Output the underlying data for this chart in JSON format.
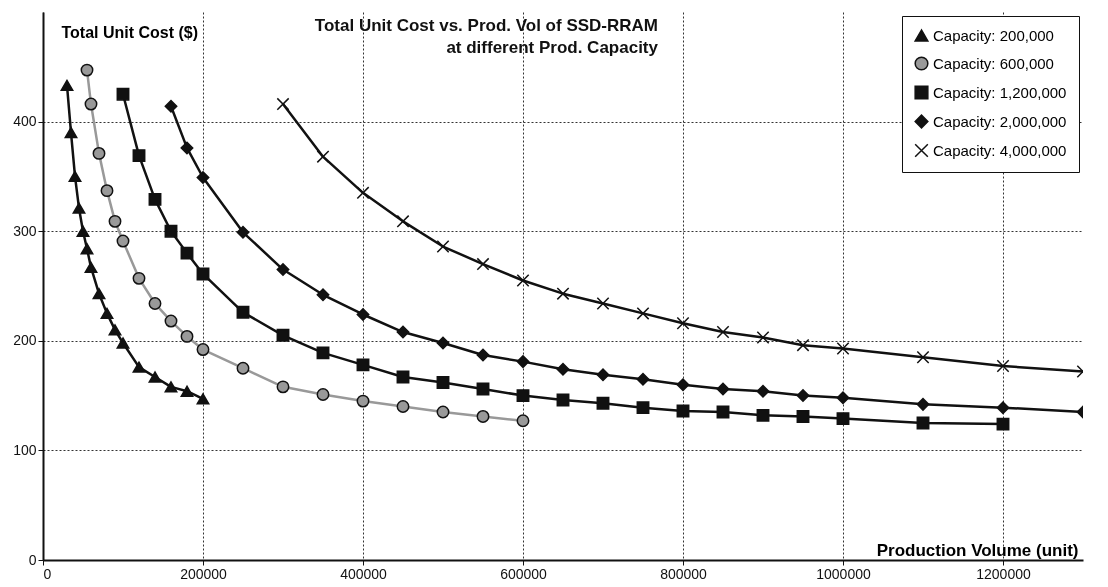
{
  "chart_data": {
    "type": "line",
    "title": "Total Unit Cost vs. Prod. Vol of SSD-RRAM\nat different Prod. Capacity",
    "xlabel": "Production Volume (unit)",
    "ylabel": "Total Unit Cost ($)",
    "xlim": [
      0,
      1300000
    ],
    "ylim": [
      0,
      500
    ],
    "xticks": [
      0,
      200000,
      400000,
      600000,
      800000,
      1000000,
      1200000
    ],
    "yticks": [
      0,
      100,
      200,
      300,
      400
    ],
    "grid": true,
    "legend": "top right",
    "line_style": "solid",
    "series": [
      {
        "name": "Capacity: 200,000",
        "color": "#111111",
        "marker": "triangle",
        "x": [
          30000,
          35000,
          40000,
          45000,
          50000,
          55000,
          60000,
          70000,
          80000,
          90000,
          100000,
          120000,
          140000,
          160000,
          180000,
          200000
        ],
        "values": [
          433,
          390,
          350,
          321,
          300,
          284,
          267,
          243,
          225,
          210,
          198,
          176,
          167,
          158,
          154,
          147
        ]
      },
      {
        "name": "Capacity: 600,000",
        "color": "#999999",
        "marker": "circle",
        "x": [
          55000,
          60000,
          70000,
          80000,
          90000,
          100000,
          120000,
          140000,
          160000,
          180000,
          200000,
          250000,
          300000,
          350000,
          400000,
          450000,
          500000,
          550000,
          600000
        ],
        "values": [
          447,
          416,
          371,
          337,
          309,
          291,
          257,
          234,
          218,
          204,
          192,
          175,
          158,
          151,
          145,
          140,
          135,
          131,
          127
        ]
      },
      {
        "name": "Capacity: 1,200,000",
        "color": "#111111",
        "marker": "square",
        "x": [
          100000,
          120000,
          140000,
          160000,
          180000,
          200000,
          250000,
          300000,
          350000,
          400000,
          450000,
          500000,
          550000,
          600000,
          650000,
          700000,
          750000,
          800000,
          850000,
          900000,
          950000,
          1000000,
          1100000,
          1200000
        ],
        "values": [
          425,
          369,
          329,
          300,
          280,
          261,
          226,
          205,
          189,
          178,
          167,
          162,
          156,
          150,
          146,
          143,
          139,
          136,
          135,
          132,
          131,
          129,
          125,
          124
        ]
      },
      {
        "name": "Capacity: 2,000,000",
        "color": "#111111",
        "marker": "diamond",
        "x": [
          160000,
          180000,
          200000,
          250000,
          300000,
          350000,
          400000,
          450000,
          500000,
          550000,
          600000,
          650000,
          700000,
          750000,
          800000,
          850000,
          900000,
          950000,
          1000000,
          1100000,
          1200000,
          1300000
        ],
        "values": [
          414,
          376,
          349,
          299,
          265,
          242,
          224,
          208,
          198,
          187,
          181,
          174,
          169,
          165,
          160,
          156,
          154,
          150,
          148,
          142,
          139,
          135
        ]
      },
      {
        "name": "Capacity: 4,000,000",
        "color": "#111111",
        "marker": "cross",
        "x": [
          300000,
          350000,
          400000,
          450000,
          500000,
          550000,
          600000,
          650000,
          700000,
          750000,
          800000,
          850000,
          900000,
          950000,
          1000000,
          1100000,
          1200000,
          1300000
        ],
        "values": [
          416,
          368,
          335,
          309,
          286,
          270,
          255,
          243,
          234,
          225,
          216,
          208,
          203,
          196,
          193,
          185,
          177,
          172
        ]
      }
    ]
  }
}
